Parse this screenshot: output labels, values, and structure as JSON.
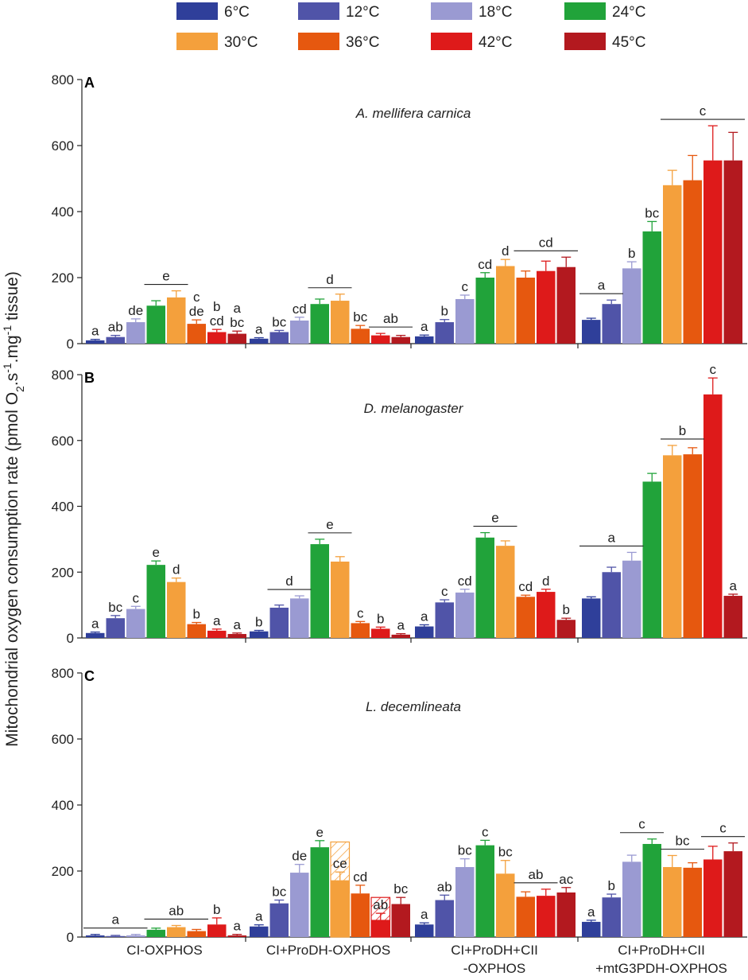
{
  "legend": [
    {
      "label": "6°C",
      "color": "#2f3f9a"
    },
    {
      "label": "12°C",
      "color": "#5054a8"
    },
    {
      "label": "18°C",
      "color": "#9a9ad2"
    },
    {
      "label": "24°C",
      "color": "#21a33a"
    },
    {
      "label": "30°C",
      "color": "#f4a03c"
    },
    {
      "label": "36°C",
      "color": "#e6580f"
    },
    {
      "label": "42°C",
      "color": "#de1a1a"
    },
    {
      "label": "45°C",
      "color": "#b3191f"
    }
  ],
  "ylabel": "Mitochondrial oxygen consumption rate (pmol O",
  "ylabel_sub": "2",
  "ylabel_mid": ".s",
  "ylabel_sup1": "-1",
  "ylabel_mid2": ".mg",
  "ylabel_sup2": "-1",
  "ylabel_end": " tissue)",
  "chart_data": {
    "type": "bar",
    "categories": [
      "CI-OXPHOS",
      "CI+ProDH-OXPHOS",
      "CI+ProDH+CII\n-OXPHOS",
      "CI+ProDH+CII\n+mtG3PDH-OXPHOS"
    ],
    "ylim": [
      0,
      800
    ],
    "yticks": [
      "0",
      "200",
      "400",
      "600",
      "800"
    ],
    "panels": [
      {
        "letter": "A",
        "title": "A. mellifera carnica",
        "values": [
          [
            10,
            20,
            65,
            115,
            140,
            60,
            35,
            30
          ],
          [
            15,
            35,
            70,
            120,
            130,
            45,
            25,
            20
          ],
          [
            22,
            65,
            135,
            200,
            235,
            200,
            220,
            232
          ],
          [
            72,
            120,
            228,
            340,
            480,
            495,
            555,
            555
          ]
        ],
        "errors": [
          [
            3,
            5,
            10,
            15,
            20,
            12,
            8,
            8
          ],
          [
            3,
            5,
            10,
            15,
            20,
            10,
            6,
            5
          ],
          [
            4,
            8,
            12,
            15,
            20,
            20,
            30,
            30
          ],
          [
            5,
            12,
            20,
            30,
            45,
            75,
            105,
            85
          ]
        ],
        "letters": [
          [
            "a",
            "ab",
            "de",
            "",
            "",
            "c\nde",
            "b\ncd",
            "a\nbc"
          ],
          [
            "a",
            "bc",
            "cd",
            "",
            "",
            "bc",
            "",
            ""
          ],
          [
            "a",
            "b",
            "c",
            "cd",
            "d",
            "",
            "",
            ""
          ],
          [
            "",
            "",
            "b",
            "bc",
            "",
            "",
            "",
            ""
          ]
        ],
        "groups": [
          {
            "category": 0,
            "from": 3,
            "to": 4,
            "letter": "e"
          },
          {
            "category": 1,
            "from": 3,
            "to": 4,
            "letter": "d"
          },
          {
            "category": 1,
            "from": 6,
            "to": 7,
            "letter": "ab"
          },
          {
            "category": 2,
            "from": 5,
            "to": 7,
            "letter": "cd"
          },
          {
            "category": 3,
            "from": 0,
            "to": 1,
            "letter": "a"
          },
          {
            "category": 3,
            "from": 4,
            "to": 7,
            "letter": "c"
          }
        ]
      },
      {
        "letter": "B",
        "title": "D. melanogaster",
        "values": [
          [
            15,
            60,
            88,
            222,
            170,
            42,
            22,
            12
          ],
          [
            20,
            92,
            120,
            285,
            232,
            45,
            28,
            10
          ],
          [
            35,
            108,
            138,
            305,
            280,
            125,
            140,
            55
          ],
          [
            120,
            200,
            235,
            475,
            555,
            558,
            740,
            128
          ]
        ],
        "errors": [
          [
            3,
            8,
            8,
            12,
            12,
            5,
            5,
            3
          ],
          [
            3,
            8,
            8,
            15,
            15,
            5,
            5,
            3
          ],
          [
            5,
            8,
            10,
            15,
            15,
            5,
            8,
            5
          ],
          [
            5,
            15,
            25,
            25,
            30,
            20,
            50,
            5
          ]
        ],
        "letters": [
          [
            "a",
            "bc",
            "c",
            "e",
            "d",
            "b",
            "a",
            "a"
          ],
          [
            "b",
            "",
            "",
            "",
            "",
            "c",
            "b",
            "a"
          ],
          [
            "a",
            "c",
            "cd",
            "",
            "",
            "cd",
            "d",
            "b"
          ],
          [
            "",
            "",
            "",
            "",
            "",
            "",
            "c",
            "a"
          ]
        ],
        "groups": [
          {
            "category": 1,
            "from": 1,
            "to": 2,
            "letter": "d"
          },
          {
            "category": 1,
            "from": 3,
            "to": 4,
            "letter": "e"
          },
          {
            "category": 2,
            "from": 3,
            "to": 4,
            "letter": "e"
          },
          {
            "category": 3,
            "from": 0,
            "to": 2,
            "letter": "a"
          },
          {
            "category": 3,
            "from": 4,
            "to": 5,
            "letter": "b"
          }
        ]
      },
      {
        "letter": "C",
        "title": "L. decemlineata",
        "values": [
          [
            5,
            3,
            5,
            22,
            30,
            18,
            38,
            5
          ],
          [
            32,
            102,
            195,
            272,
            172,
            132,
            52,
            100
          ],
          [
            38,
            112,
            212,
            278,
            192,
            122,
            125,
            135
          ],
          [
            46,
            120,
            228,
            282,
            212,
            210,
            235,
            260
          ]
        ],
        "overlay": {
          "category": 1,
          "series": [
            4,
            6
          ],
          "totals": [
            288,
            120
          ]
        },
        "errors": [
          [
            3,
            2,
            3,
            5,
            5,
            5,
            20,
            3
          ],
          [
            5,
            10,
            25,
            20,
            25,
            25,
            20,
            20
          ],
          [
            5,
            15,
            25,
            15,
            40,
            15,
            20,
            15
          ],
          [
            5,
            10,
            20,
            15,
            35,
            15,
            40,
            25
          ]
        ],
        "letters": [
          [
            "",
            "",
            "",
            "",
            "",
            "",
            "b",
            "a"
          ],
          [
            "a",
            "bc",
            "de",
            "e",
            "ce",
            "cd",
            "ab",
            "bc"
          ],
          [
            "a",
            "ab",
            "bc",
            "c",
            "bc",
            "",
            "",
            "ac"
          ],
          [
            "a",
            "b",
            "",
            "",
            "",
            "",
            "",
            ""
          ]
        ],
        "groups": [
          {
            "category": 0,
            "from": 0,
            "to": 2,
            "letter": "a"
          },
          {
            "category": 0,
            "from": 3,
            "to": 5,
            "letter": "ab"
          },
          {
            "category": 2,
            "from": 5,
            "to": 6,
            "letter": "ab"
          },
          {
            "category": 3,
            "from": 2,
            "to": 3,
            "letter": "c"
          },
          {
            "category": 3,
            "from": 4,
            "to": 5,
            "letter": "bc"
          },
          {
            "category": 3,
            "from": 6,
            "to": 7,
            "letter": "c"
          }
        ]
      }
    ]
  }
}
